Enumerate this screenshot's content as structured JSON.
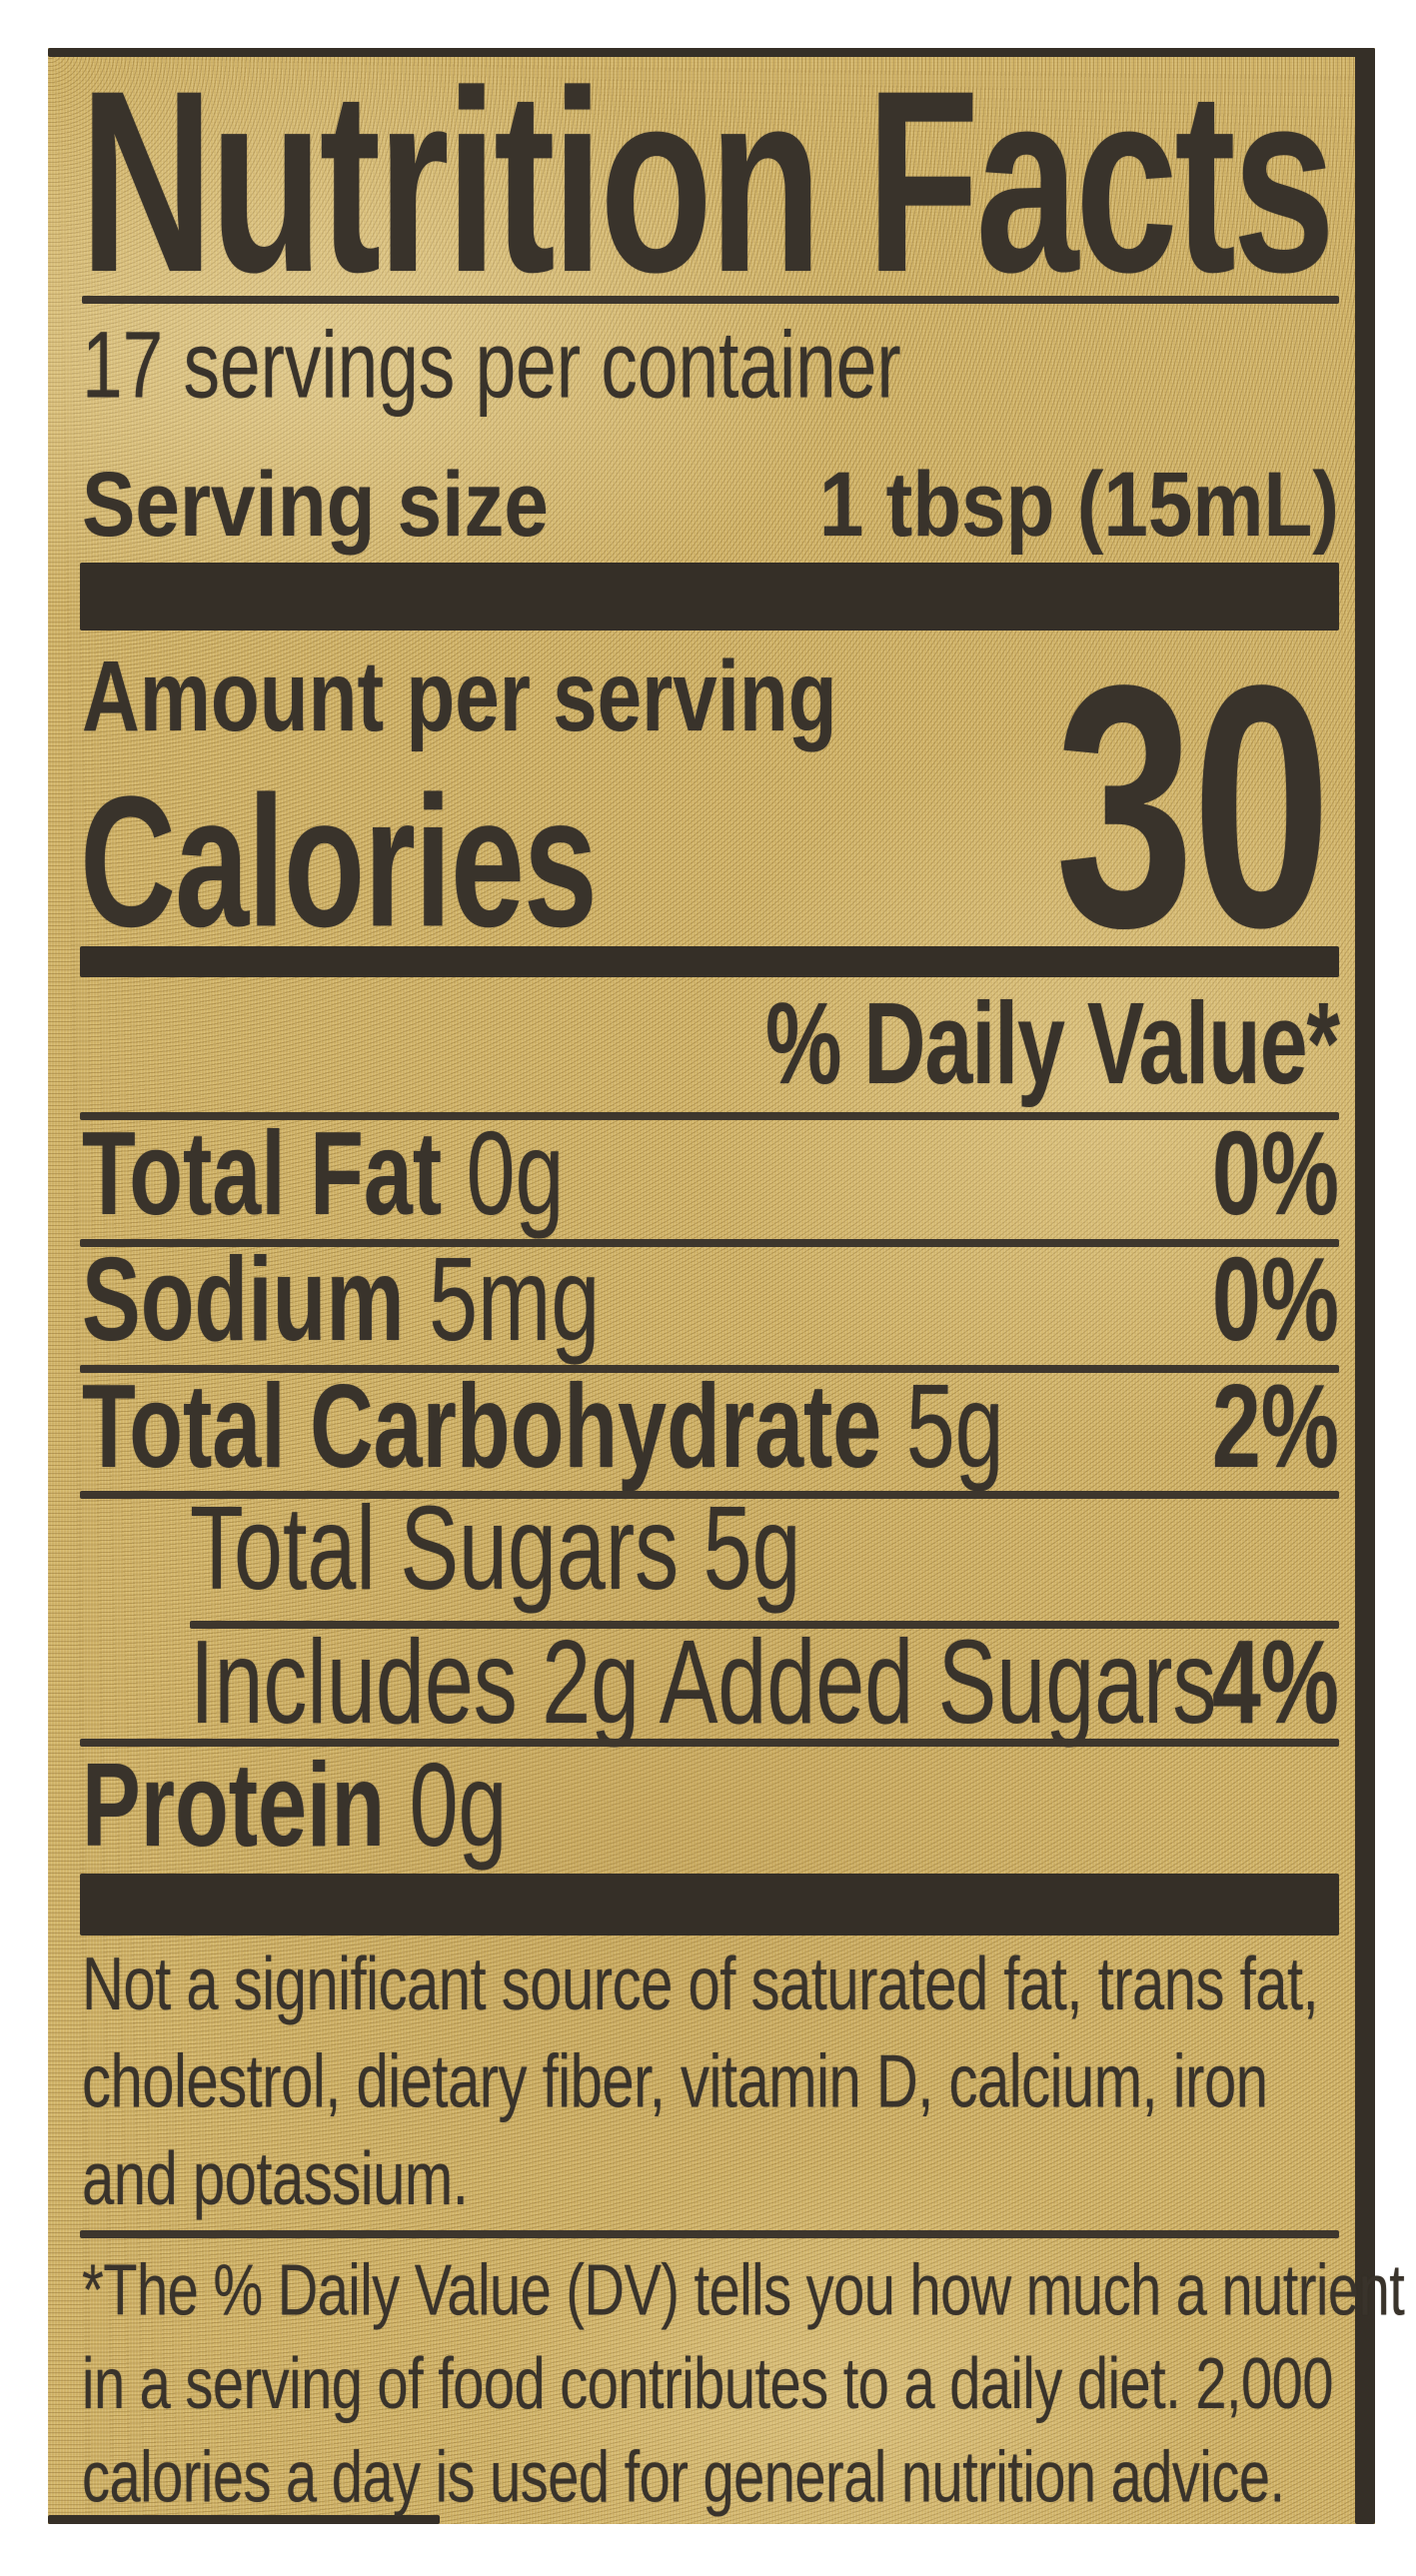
{
  "colors": {
    "page_background": "#ffffff",
    "label_background": "#d2b56a",
    "ink": "#39332b"
  },
  "label": {
    "title": "Nutrition Facts",
    "servings_per_container": "17 servings per container",
    "serving_size": {
      "label": "Serving size",
      "value": "1 tbsp (15mL)"
    },
    "amount_per_serving": "Amount per serving",
    "calories": {
      "label": "Calories",
      "value": "30"
    },
    "daily_value_header": "% Daily Value*",
    "nutrients": [
      {
        "name": "Total Fat",
        "amount": " 0g",
        "daily_value": "0%"
      },
      {
        "name": "Sodium",
        "amount": " 5mg",
        "daily_value": "0%"
      },
      {
        "name": "Total Carbohydrate",
        "amount": " 5g",
        "daily_value": "2%"
      },
      {
        "name": "Total Sugars 5g",
        "amount": "",
        "daily_value": ""
      },
      {
        "name": "Includes 2g Added Sugars",
        "amount": "",
        "daily_value": "4%"
      },
      {
        "name": "Protein",
        "amount": " 0g",
        "daily_value": ""
      }
    ],
    "footnote_sources": {
      "line1": "Not a significant source of saturated fat, trans fat,",
      "line2": "cholestrol, dietary fiber, vitamin D, calcium, iron",
      "line3": "and potassium."
    },
    "footnote_daily_value": {
      "line1": "*The % Daily Value (DV) tells you how much a nutrient",
      "line2": "in a serving of food contributes to a daily diet. 2,000",
      "line3": "calories a day is used for general nutrition advice."
    }
  }
}
